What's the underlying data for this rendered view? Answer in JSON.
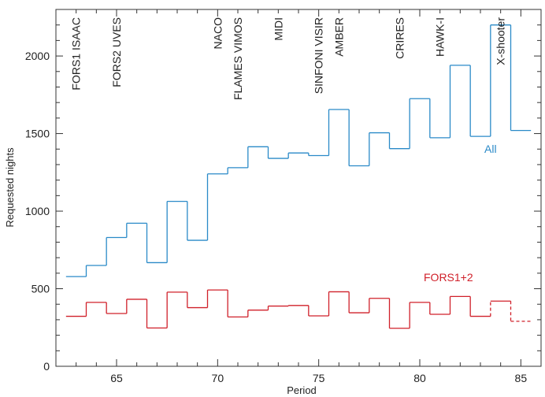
{
  "chart_data": {
    "type": "line",
    "step": true,
    "xlabel": "Period",
    "ylabel": "Requested nights",
    "xlim": [
      62,
      86
    ],
    "ylim": [
      0,
      2300
    ],
    "x_major_ticks": [
      65,
      70,
      75,
      80,
      85
    ],
    "x_minor_ticks": [
      62,
      63,
      64,
      66,
      67,
      68,
      69,
      71,
      72,
      73,
      74,
      76,
      77,
      78,
      79,
      81,
      82,
      83,
      84,
      86
    ],
    "y_major_ticks": [
      0,
      500,
      1000,
      1500,
      2000
    ],
    "y_minor_ticks": [
      100,
      200,
      300,
      400,
      600,
      700,
      800,
      900,
      1100,
      1200,
      1300,
      1400,
      1600,
      1700,
      1800,
      1900,
      2100,
      2200
    ],
    "tick_labels_x": [
      "65",
      "70",
      "75",
      "80",
      "85"
    ],
    "tick_labels_y": [
      "0",
      "500",
      "1000",
      "1500",
      "2000"
    ],
    "grid": false,
    "series": [
      {
        "name": "All",
        "color": "#2a8ac8",
        "periods": [
          63,
          64,
          65,
          66,
          67,
          68,
          69,
          70,
          71,
          72,
          73,
          74,
          75,
          76,
          77,
          78,
          79,
          80,
          81,
          82,
          83,
          84,
          85
        ],
        "values": [
          578,
          650,
          830,
          922,
          668,
          1063,
          812,
          1240,
          1280,
          1415,
          1340,
          1375,
          1358,
          1655,
          1292,
          1505,
          1403,
          1725,
          1473,
          1940,
          1482,
          2200,
          1520
        ]
      },
      {
        "name": "FORS1+2",
        "color": "#d0202a",
        "periods": [
          63,
          64,
          65,
          66,
          67,
          68,
          69,
          70,
          71,
          72,
          73,
          74,
          75,
          76,
          77,
          78,
          79,
          80,
          81,
          82,
          83,
          84,
          85
        ],
        "values": [
          322,
          412,
          340,
          432,
          247,
          478,
          378,
          492,
          318,
          362,
          388,
          392,
          325,
          480,
          345,
          438,
          245,
          412,
          335,
          450,
          322,
          420,
          290
        ]
      }
    ],
    "annotations": [
      {
        "text": "FORS1 ISAAC",
        "period": 63
      },
      {
        "text": "FORS2 UVES",
        "period": 65
      },
      {
        "text": "NACO",
        "period": 70
      },
      {
        "text": "FLAMES VIMOS",
        "period": 71
      },
      {
        "text": "MIDI",
        "period": 73
      },
      {
        "text": "SINFONI VISIR",
        "period": 75
      },
      {
        "text": "AMBER",
        "period": 76
      },
      {
        "text": "CRIRES",
        "period": 79
      },
      {
        "text": "HAWK-I",
        "period": 81
      },
      {
        "text": "X-shooter",
        "period": 84
      }
    ]
  }
}
